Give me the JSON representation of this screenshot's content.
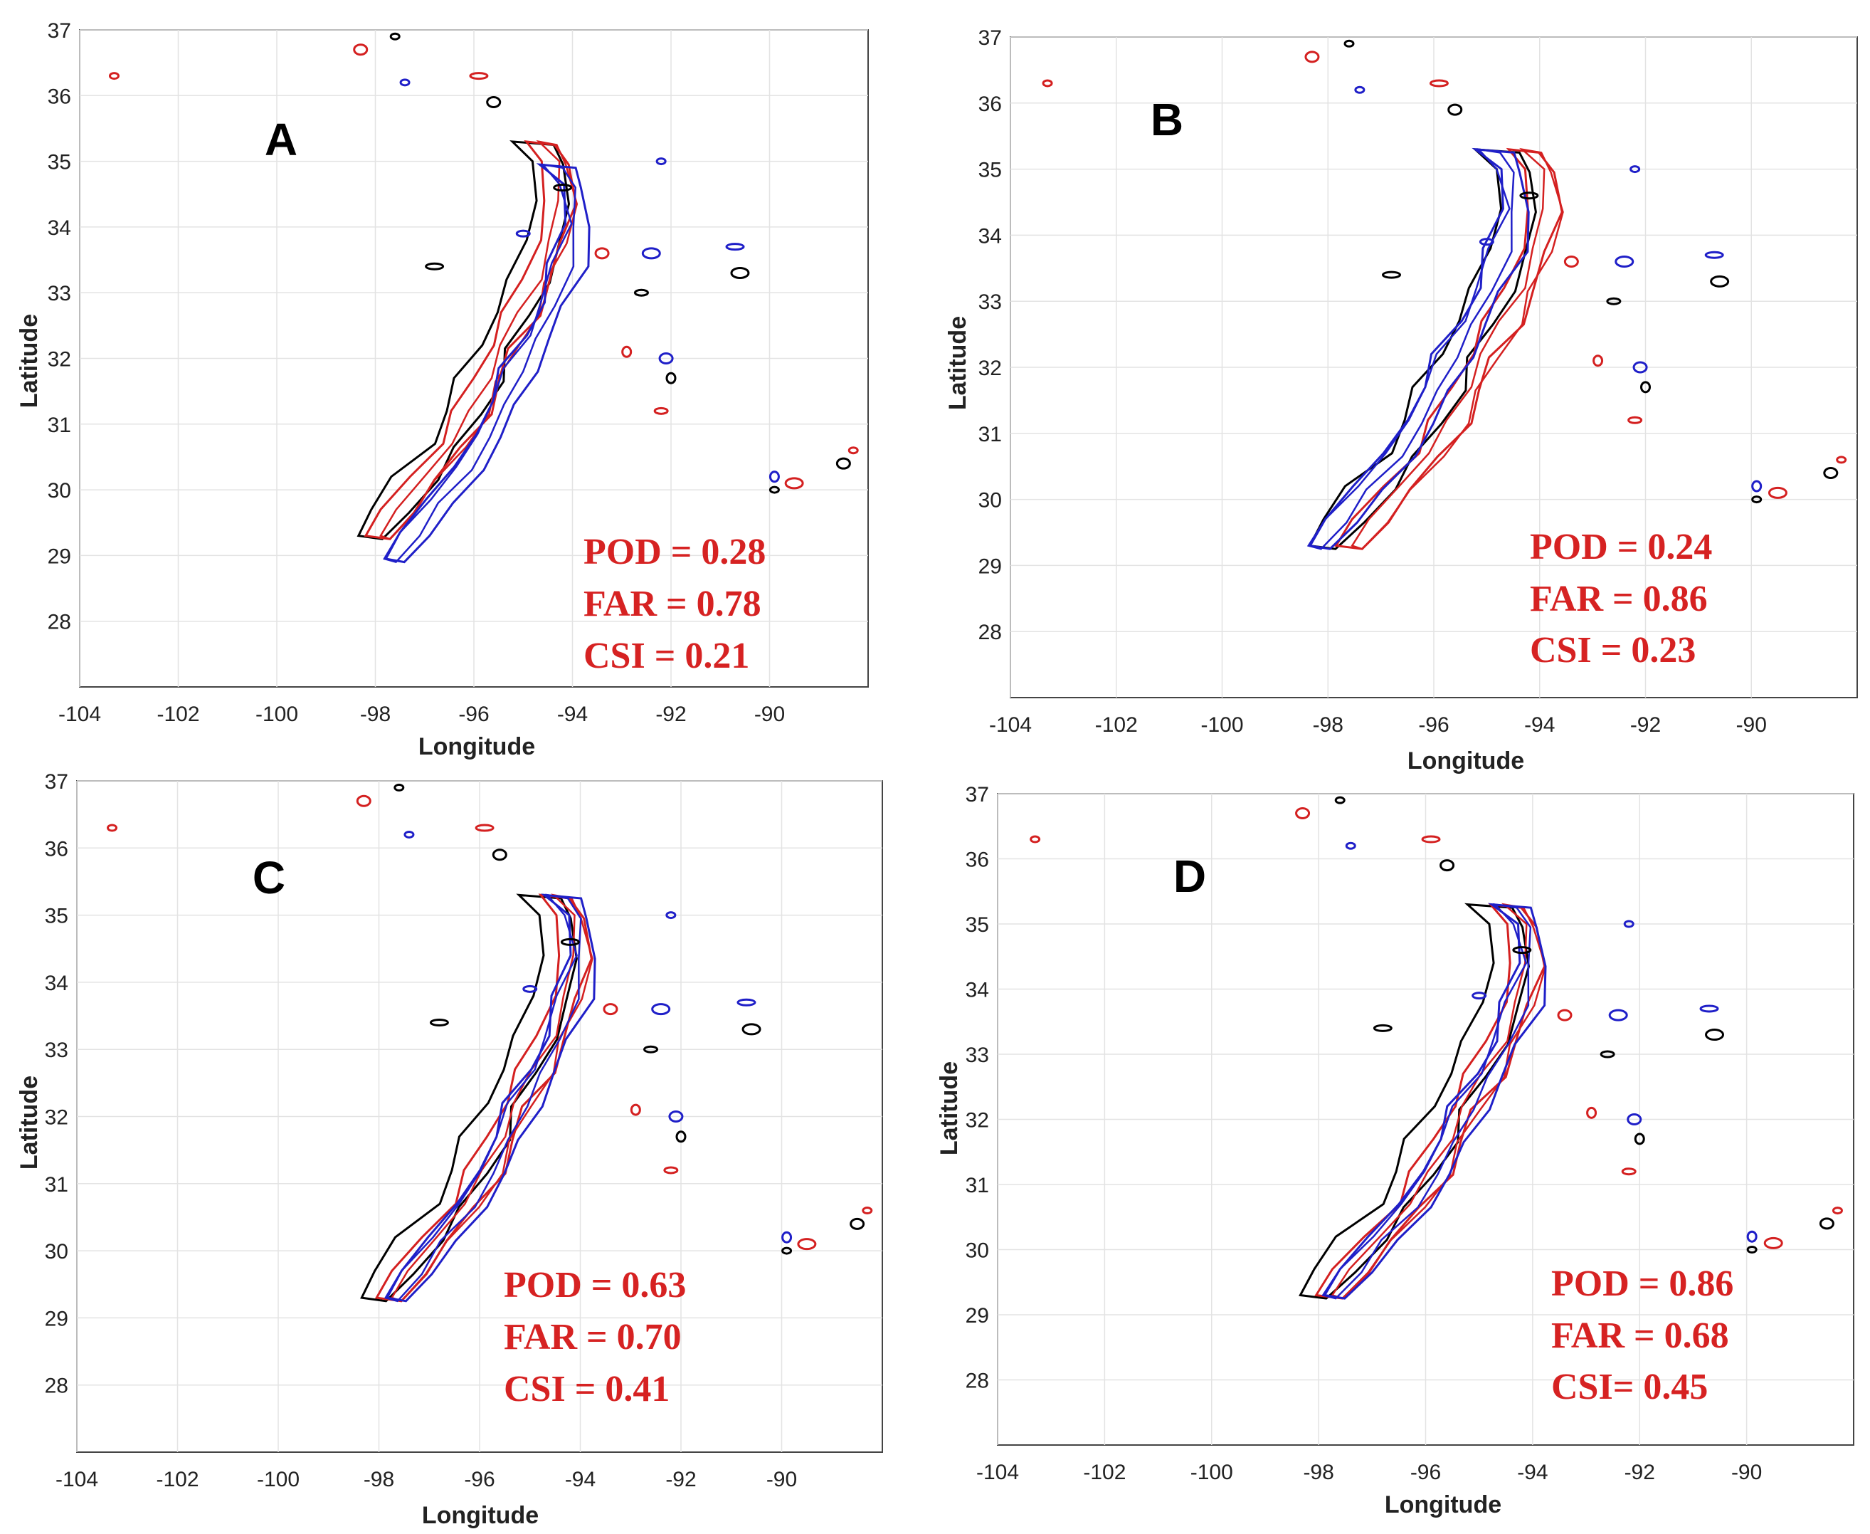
{
  "figure": {
    "background": "#ffffff"
  },
  "colors": {
    "observed": "#000000",
    "red": "#d42020",
    "blue": "#1f1fc8",
    "metric_text": "#d62222",
    "grid": "#e3e3e3",
    "axis": "#444444"
  },
  "chart_data": [
    {
      "type": "contour_map",
      "panel": "A",
      "xlabel": "Longitude",
      "ylabel": "Latitude",
      "xlim": [
        -104,
        -88
      ],
      "ylim": [
        27,
        37
      ],
      "xticks": [
        -104,
        -102,
        -100,
        -98,
        -96,
        -94,
        -92,
        -90
      ],
      "yticks": [
        28,
        29,
        30,
        31,
        32,
        33,
        34,
        35,
        36,
        37
      ],
      "metrics": [
        "POD = 0.28",
        "FAR = 0.78",
        "CSI = 0.21"
      ],
      "metrics_anchor": [
        -94.2,
        29.1
      ],
      "band_shift": {
        "red": [
          0.15,
          0.0
        ],
        "blue": [
          0.5,
          -0.35
        ]
      }
    },
    {
      "type": "contour_map",
      "panel": "B",
      "xlabel": "Longitude",
      "ylabel": "Latitude",
      "xlim": [
        -104,
        -88
      ],
      "ylim": [
        27,
        37
      ],
      "xticks": [
        -104,
        -102,
        -100,
        -98,
        -96,
        -94,
        -92,
        -90
      ],
      "yticks": [
        28,
        29,
        30,
        31,
        32,
        33,
        34,
        35,
        36,
        37
      ],
      "metrics": [
        "POD = 0.24",
        "FAR = 0.86",
        "CSI = 0.23"
      ],
      "metrics_anchor": [
        -93.8,
        29.2
      ],
      "band_shift": {
        "red": [
          0.5,
          0.0
        ],
        "blue": [
          -0.05,
          0.0
        ]
      }
    },
    {
      "type": "contour_map",
      "panel": "C",
      "xlabel": "Longitude",
      "ylabel": "Latitude",
      "xlim": [
        -104,
        -88
      ],
      "ylim": [
        27,
        37
      ],
      "xticks": [
        -104,
        -102,
        -100,
        -98,
        -96,
        -94,
        -92,
        -90
      ],
      "yticks": [
        28,
        29,
        30,
        31,
        32,
        33,
        34,
        35,
        36,
        37
      ],
      "metrics": [
        "POD = 0.63",
        "FAR = 0.70",
        "CSI = 0.41"
      ],
      "metrics_anchor": [
        -95.5,
        29.4
      ],
      "band_shift": {
        "red": [
          0.3,
          0.0
        ],
        "blue": [
          0.45,
          0.0
        ]
      }
    },
    {
      "type": "contour_map",
      "panel": "D",
      "xlabel": "Longitude",
      "ylabel": "Latitude",
      "xlim": [
        -104,
        -88
      ],
      "ylim": [
        27,
        37
      ],
      "xticks": [
        -104,
        -102,
        -100,
        -98,
        -96,
        -94,
        -92,
        -90
      ],
      "yticks": [
        28,
        29,
        30,
        31,
        32,
        33,
        34,
        35,
        36,
        37
      ],
      "metrics": [
        "POD = 0.86",
        "FAR = 0.68",
        "CSI= 0.45"
      ],
      "metrics_anchor": [
        -93.2,
        29.4
      ],
      "band_shift": {
        "red": [
          0.3,
          0.0
        ],
        "blue": [
          0.4,
          0.0
        ]
      }
    }
  ]
}
